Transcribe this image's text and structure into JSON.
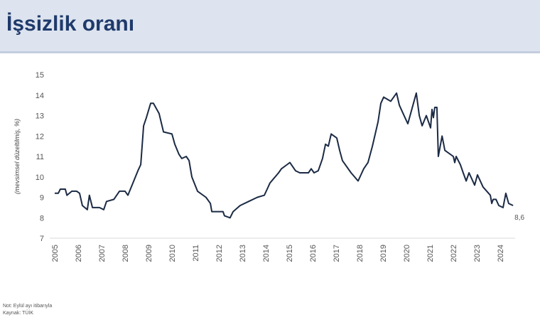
{
  "header": {
    "title": "İşsizlik oranı"
  },
  "notes": {
    "note": "Not: Eylül ayı itibarıyla",
    "source": "Kaynak: TÜİK"
  },
  "chart_data": {
    "type": "line",
    "title": "İşsizlik oranı",
    "ylabel": "(mevsimsel düzeltilmiş, %)",
    "xlabel": "",
    "ylim": [
      7,
      15
    ],
    "yticks": [
      "7",
      "8",
      "9",
      "10",
      "11",
      "12",
      "13",
      "14",
      "15"
    ],
    "xticks": [
      "2005",
      "2006",
      "2007",
      "2008",
      "2009",
      "2010",
      "2011",
      "2012",
      "2013",
      "2014",
      "2015",
      "2016",
      "2017",
      "2018",
      "2019",
      "2020",
      "2021",
      "2022",
      "2023",
      "2024"
    ],
    "xlim": [
      2005,
      2025
    ],
    "grid": false,
    "end_label": "8,6",
    "line_color": "#1b2a44",
    "series": [
      {
        "name": "İşsizlik oranı",
        "points": [
          [
            2005.0,
            9.2
          ],
          [
            2005.15,
            9.2
          ],
          [
            2005.24,
            9.4
          ],
          [
            2005.45,
            9.4
          ],
          [
            2005.52,
            9.1
          ],
          [
            2005.73,
            9.3
          ],
          [
            2005.94,
            9.3
          ],
          [
            2006.06,
            9.2
          ],
          [
            2006.18,
            8.6
          ],
          [
            2006.39,
            8.4
          ],
          [
            2006.48,
            9.1
          ],
          [
            2006.61,
            8.5
          ],
          [
            2006.91,
            8.5
          ],
          [
            2007.09,
            8.4
          ],
          [
            2007.21,
            8.8
          ],
          [
            2007.52,
            8.9
          ],
          [
            2007.76,
            9.3
          ],
          [
            2008.0,
            9.3
          ],
          [
            2008.12,
            9.1
          ],
          [
            2008.3,
            9.6
          ],
          [
            2008.55,
            10.3
          ],
          [
            2008.67,
            10.6
          ],
          [
            2008.79,
            12.5
          ],
          [
            2008.91,
            12.9
          ],
          [
            2009.09,
            13.6
          ],
          [
            2009.21,
            13.6
          ],
          [
            2009.45,
            13.1
          ],
          [
            2009.64,
            12.2
          ],
          [
            2010.0,
            12.1
          ],
          [
            2010.12,
            11.6
          ],
          [
            2010.3,
            11.1
          ],
          [
            2010.42,
            10.9
          ],
          [
            2010.61,
            11.0
          ],
          [
            2010.73,
            10.8
          ],
          [
            2010.85,
            10.0
          ],
          [
            2011.09,
            9.3
          ],
          [
            2011.45,
            9.0
          ],
          [
            2011.64,
            8.7
          ],
          [
            2011.7,
            8.3
          ],
          [
            2011.94,
            8.3
          ],
          [
            2012.18,
            8.3
          ],
          [
            2012.24,
            8.1
          ],
          [
            2012.48,
            8.0
          ],
          [
            2012.61,
            8.3
          ],
          [
            2012.91,
            8.6
          ],
          [
            2013.27,
            8.8
          ],
          [
            2013.64,
            9.0
          ],
          [
            2013.94,
            9.1
          ],
          [
            2014.06,
            9.4
          ],
          [
            2014.18,
            9.7
          ],
          [
            2014.55,
            10.2
          ],
          [
            2014.67,
            10.4
          ],
          [
            2014.91,
            10.6
          ],
          [
            2015.03,
            10.7
          ],
          [
            2015.27,
            10.3
          ],
          [
            2015.45,
            10.2
          ],
          [
            2015.82,
            10.2
          ],
          [
            2015.94,
            10.4
          ],
          [
            2016.06,
            10.2
          ],
          [
            2016.24,
            10.3
          ],
          [
            2016.42,
            10.9
          ],
          [
            2016.55,
            11.6
          ],
          [
            2016.67,
            11.5
          ],
          [
            2016.79,
            12.1
          ],
          [
            2017.03,
            11.9
          ],
          [
            2017.15,
            11.3
          ],
          [
            2017.27,
            10.8
          ],
          [
            2017.64,
            10.2
          ],
          [
            2017.94,
            9.8
          ],
          [
            2018.18,
            10.4
          ],
          [
            2018.36,
            10.7
          ],
          [
            2018.55,
            11.5
          ],
          [
            2018.79,
            12.7
          ],
          [
            2018.91,
            13.6
          ],
          [
            2019.03,
            13.9
          ],
          [
            2019.33,
            13.7
          ],
          [
            2019.58,
            14.1
          ],
          [
            2019.7,
            13.5
          ],
          [
            2019.94,
            12.9
          ],
          [
            2020.06,
            12.6
          ],
          [
            2020.3,
            13.6
          ],
          [
            2020.42,
            14.1
          ],
          [
            2020.55,
            13.0
          ],
          [
            2020.67,
            12.5
          ],
          [
            2020.85,
            13.0
          ],
          [
            2021.03,
            12.4
          ],
          [
            2021.09,
            13.3
          ],
          [
            2021.15,
            12.9
          ],
          [
            2021.21,
            13.4
          ],
          [
            2021.3,
            13.4
          ],
          [
            2021.36,
            11.0
          ],
          [
            2021.52,
            12.0
          ],
          [
            2021.64,
            11.3
          ],
          [
            2022.0,
            11.0
          ],
          [
            2022.06,
            10.7
          ],
          [
            2022.12,
            11.0
          ],
          [
            2022.3,
            10.6
          ],
          [
            2022.42,
            10.2
          ],
          [
            2022.55,
            9.8
          ],
          [
            2022.67,
            10.2
          ],
          [
            2022.91,
            9.6
          ],
          [
            2023.03,
            10.1
          ],
          [
            2023.27,
            9.5
          ],
          [
            2023.58,
            9.1
          ],
          [
            2023.64,
            8.7
          ],
          [
            2023.7,
            8.9
          ],
          [
            2023.82,
            8.9
          ],
          [
            2023.94,
            8.6
          ],
          [
            2024.12,
            8.5
          ],
          [
            2024.24,
            9.2
          ],
          [
            2024.36,
            8.7
          ],
          [
            2024.55,
            8.6
          ]
        ]
      }
    ]
  }
}
